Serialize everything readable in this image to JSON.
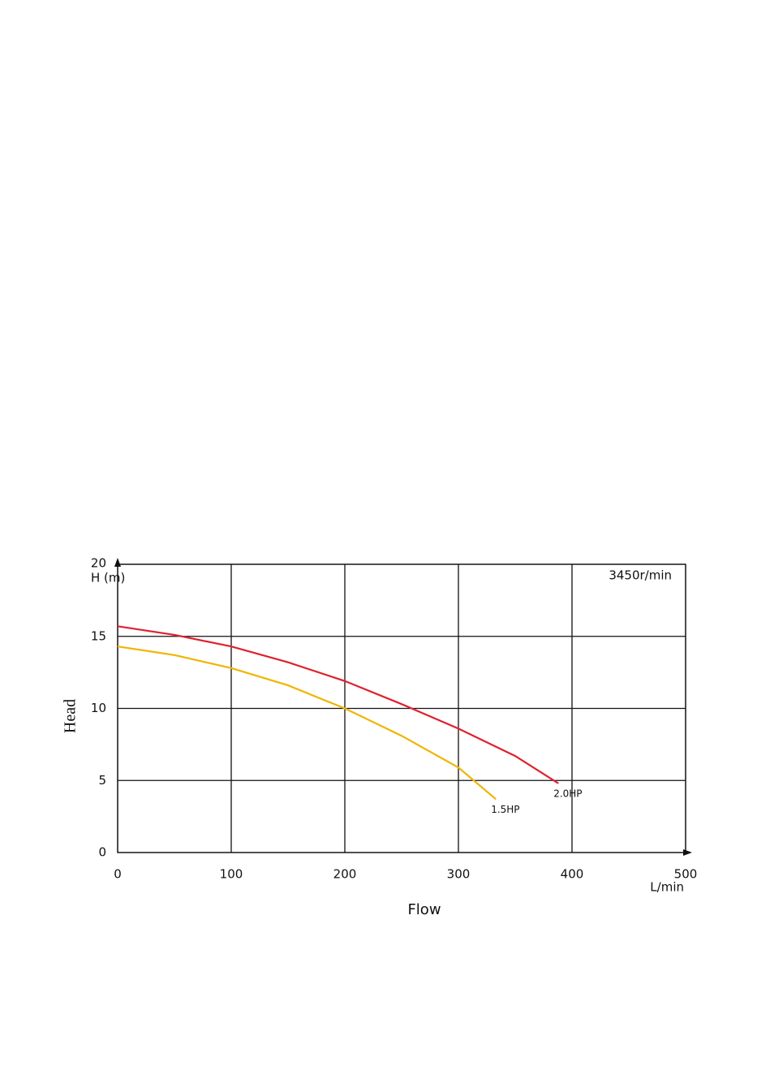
{
  "chart_data": {
    "type": "line",
    "annotation": "3450r/min",
    "ylabel": "Head",
    "y_unit_label": "H (m)",
    "xlabel": "Flow",
    "x_unit_label": "L/min",
    "xlim": [
      0,
      500
    ],
    "xticks": [
      0,
      100,
      200,
      300,
      400,
      500
    ],
    "ylim": [
      0,
      20
    ],
    "yticks": [
      0,
      5,
      10,
      15,
      20
    ],
    "grid": true,
    "series": [
      {
        "name": "2.0HP",
        "color": "#e0202e",
        "x": [
          0,
          50,
          100,
          150,
          200,
          250,
          300,
          350,
          388
        ],
        "values": [
          15.7,
          15.1,
          14.3,
          13.2,
          11.9,
          10.3,
          8.6,
          6.7,
          4.8
        ]
      },
      {
        "name": "1.5HP",
        "color": "#f0b400",
        "x": [
          0,
          50,
          100,
          150,
          200,
          250,
          300,
          333
        ],
        "values": [
          14.3,
          13.7,
          12.8,
          11.6,
          10.0,
          8.1,
          5.9,
          3.7
        ]
      }
    ]
  }
}
